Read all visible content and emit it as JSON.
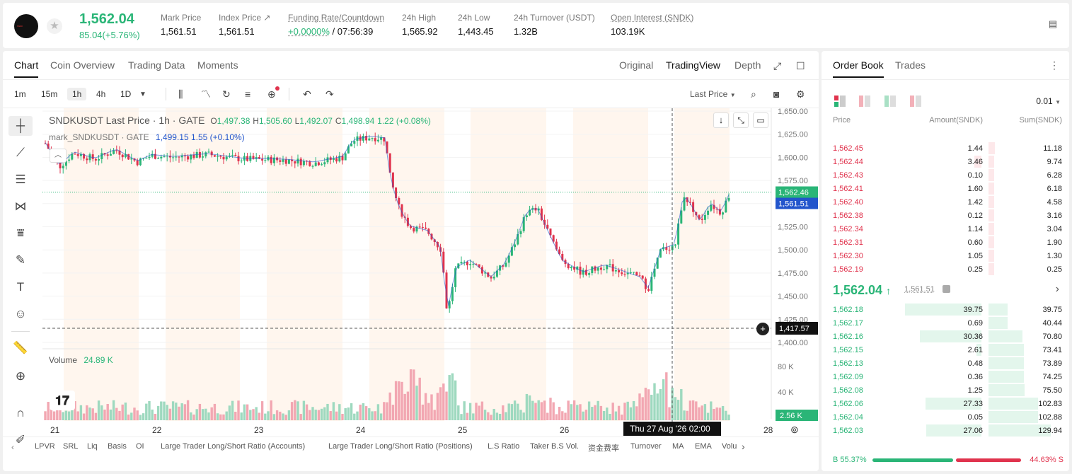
{
  "header": {
    "last_price": "1,562.04",
    "change": "85.04(+5.76%)",
    "stats": [
      {
        "label": "Mark Price",
        "value": "1,561.51"
      },
      {
        "label": "Index Price ↗",
        "value": "1,561.51"
      },
      {
        "label": "Funding Rate/Countdown",
        "value_green": "+0.0000%",
        "value": " / 07:56:39"
      },
      {
        "label": "24h High",
        "value": "1,565.92"
      },
      {
        "label": "24h Low",
        "value": "1,443.45"
      },
      {
        "label": "24h Turnover (USDT)",
        "value": "1.32B"
      },
      {
        "label": "Open Interest (SNDK)",
        "value": "103.19K"
      }
    ]
  },
  "chart_tabs": [
    "Chart",
    "Coin Overview",
    "Trading Data",
    "Moments"
  ],
  "view_tabs": [
    "Original",
    "TradingView",
    "Depth"
  ],
  "intervals": [
    "1m",
    "15m",
    "1h",
    "4h",
    "1D"
  ],
  "price_source": "Last Price",
  "legend": {
    "symbol": "SNDKUSDT Last Price · 1h · GATE",
    "o_l": "O",
    "o": "1,497.38",
    "h_l": "H",
    "h": "1,505.60",
    "l_l": "L",
    "l": "1,492.07",
    "c_l": "C",
    "c": "1,498.94",
    "chg": "1.22 (+0.08%)",
    "mark_name": "mark_SNDKUSDT · GATE",
    "mark_val": "1,499.15  1.55 (+0.10%)",
    "volume_label": "Volume",
    "volume_val": "24.89 K"
  },
  "y_ticks": [
    "1,650.00",
    "1,625.00",
    "1,600.00",
    "1,575.00",
    "1,550.00",
    "1,525.00",
    "1,500.00",
    "1,475.00",
    "1,450.00",
    "1,425.00",
    "1,400.00"
  ],
  "vol_ticks": [
    "80 K",
    "40 K"
  ],
  "x_ticks": [
    "21",
    "22",
    "23",
    "24",
    "25",
    "26",
    "28"
  ],
  "price_tags": {
    "last": "1,562.46",
    "mark": "1,561.51",
    "cross": "1,417.57",
    "vol": "2.56 K"
  },
  "crosshair_time": "Thu 27 Aug '26   02:00",
  "bottom_tabs": [
    "LPVR",
    "SRL",
    "Liq",
    "Basis",
    "OI",
    "Large Trader Long/Short Ratio (Accounts)",
    "Large Trader Long/Short Ratio (Positions)",
    "L.S Ratio",
    "Taker B.S Vol.",
    "资金费率",
    "Turnover",
    "MA",
    "EMA",
    "Volu"
  ],
  "orderbook": {
    "tabs": [
      "Order Book",
      "Trades"
    ],
    "precision": "0.01",
    "headers": [
      "Price",
      "Amount(SNDK)",
      "Sum(SNDK)"
    ],
    "asks": [
      [
        "1,562.45",
        "1.44",
        "11.18"
      ],
      [
        "1,562.44",
        "3.46",
        "9.74"
      ],
      [
        "1,562.43",
        "0.10",
        "6.28"
      ],
      [
        "1,562.41",
        "1.60",
        "6.18"
      ],
      [
        "1,562.40",
        "1.42",
        "4.58"
      ],
      [
        "1,562.38",
        "0.12",
        "3.16"
      ],
      [
        "1,562.34",
        "1.14",
        "3.04"
      ],
      [
        "1,562.31",
        "0.60",
        "1.90"
      ],
      [
        "1,562.30",
        "1.05",
        "1.30"
      ],
      [
        "1,562.19",
        "0.25",
        "0.25"
      ]
    ],
    "mid_price": "1,562.04",
    "mid_mark": "1,561.51",
    "bids": [
      [
        "1,562.18",
        "39.75",
        "39.75"
      ],
      [
        "1,562.17",
        "0.69",
        "40.44"
      ],
      [
        "1,562.16",
        "30.36",
        "70.80"
      ],
      [
        "1,562.15",
        "2.61",
        "73.41"
      ],
      [
        "1,562.13",
        "0.48",
        "73.89"
      ],
      [
        "1,562.09",
        "0.36",
        "74.25"
      ],
      [
        "1,562.08",
        "1.25",
        "75.50"
      ],
      [
        "1,562.06",
        "27.33",
        "102.83"
      ],
      [
        "1,562.04",
        "0.05",
        "102.88"
      ],
      [
        "1,562.03",
        "27.06",
        "129.94"
      ]
    ],
    "buy_ratio": "B 55.37%",
    "sell_ratio": "44.63% S",
    "buy_pct": 55.37
  },
  "colors": {
    "up": "#2ab577",
    "down": "#e0334d",
    "mark": "#2255cc"
  }
}
